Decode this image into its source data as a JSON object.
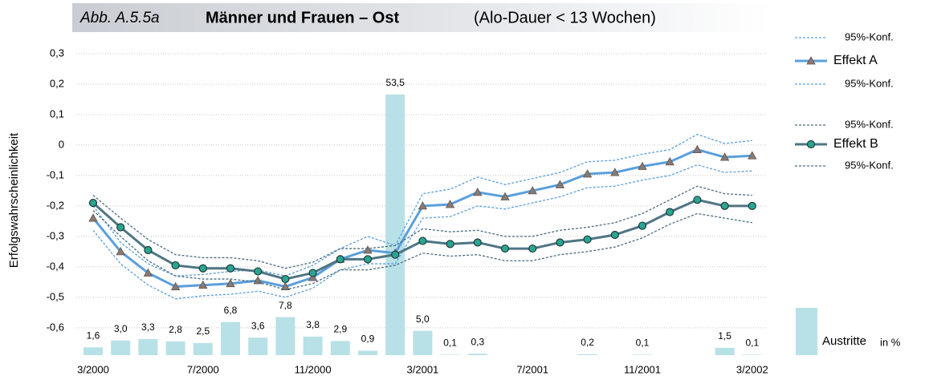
{
  "chart_data": {
    "type": "line",
    "figure_label": "Abb. A.5.5a",
    "title": "Männer und Frauen – Ost",
    "subtitle": "(Alo-Dauer < 13 Wochen)",
    "y_label": "Erfolgswahrscheinlichkeit",
    "categories": [
      "3/2000",
      null,
      null,
      null,
      "7/2000",
      null,
      null,
      null,
      "11/2000",
      null,
      null,
      null,
      "3/2001",
      null,
      null,
      null,
      "7/2001",
      null,
      null,
      null,
      "11/2001",
      null,
      null,
      null,
      "3/2002"
    ],
    "ylim": [
      -0.69,
      0.35
    ],
    "yticks": [
      {
        "value": 0.3,
        "label": "0,3"
      },
      {
        "value": 0.2,
        "label": "0,2"
      },
      {
        "value": 0.1,
        "label": "0,1"
      },
      0,
      {
        "value": -0.1,
        "label": "-0,1"
      },
      {
        "value": -0.2,
        "label": "-0,2"
      },
      {
        "value": -0.3,
        "label": "-0,3"
      },
      {
        "value": -0.4,
        "label": "-0,4"
      },
      {
        "value": -0.5,
        "label": "-0,5"
      },
      {
        "value": -0.6,
        "label": "-0,6"
      }
    ],
    "y2lim": [
      0,
      65
    ],
    "grid": true,
    "legend": "right",
    "series": [
      {
        "name": "95%-Konf.",
        "color": "#5a9fdc",
        "dash": true,
        "values": [
          -0.2,
          -0.32,
          -0.39,
          -0.43,
          -0.425,
          -0.415,
          -0.41,
          -0.43,
          -0.395,
          -0.34,
          -0.3,
          -0.33,
          -0.16,
          -0.145,
          -0.105,
          -0.13,
          -0.11,
          -0.09,
          -0.055,
          -0.05,
          -0.03,
          -0.015,
          0.035,
          0.005,
          0.015
        ]
      },
      {
        "name": "Effekt A",
        "color": "#5a9fdc",
        "marker": "triangle",
        "values": [
          -0.24,
          -0.35,
          -0.42,
          -0.465,
          -0.46,
          -0.455,
          -0.445,
          -0.465,
          -0.435,
          -0.375,
          -0.345,
          -0.355,
          -0.2,
          -0.195,
          -0.155,
          -0.17,
          -0.15,
          -0.13,
          -0.095,
          -0.09,
          -0.07,
          -0.055,
          -0.015,
          -0.04,
          -0.035
        ]
      },
      {
        "name": "95%-Konf.",
        "color": "#5a9fdc",
        "dash": true,
        "values": [
          -0.28,
          -0.39,
          -0.46,
          -0.505,
          -0.495,
          -0.49,
          -0.48,
          -0.5,
          -0.47,
          -0.41,
          -0.39,
          -0.39,
          -0.24,
          -0.235,
          -0.2,
          -0.21,
          -0.19,
          -0.17,
          -0.14,
          -0.135,
          -0.115,
          -0.1,
          -0.065,
          -0.09,
          -0.085
        ]
      },
      {
        "name": "95%-Konf.",
        "color": "#4a6d80",
        "dash": true,
        "values": [
          -0.165,
          -0.24,
          -0.31,
          -0.36,
          -0.37,
          -0.37,
          -0.38,
          -0.405,
          -0.385,
          -0.34,
          -0.34,
          -0.33,
          -0.275,
          -0.285,
          -0.28,
          -0.3,
          -0.3,
          -0.28,
          -0.27,
          -0.255,
          -0.225,
          -0.18,
          -0.135,
          -0.16,
          -0.165
        ]
      },
      {
        "name": "Effekt B",
        "color": "#4f7584",
        "marker": "circle",
        "marker_color": "#2aa58f",
        "values": [
          -0.19,
          -0.27,
          -0.345,
          -0.395,
          -0.405,
          -0.405,
          -0.415,
          -0.44,
          -0.42,
          -0.375,
          -0.375,
          -0.36,
          -0.315,
          -0.325,
          -0.32,
          -0.34,
          -0.34,
          -0.32,
          -0.31,
          -0.295,
          -0.265,
          -0.22,
          -0.18,
          -0.2,
          -0.2
        ]
      },
      {
        "name": "95%-Konf.",
        "color": "#4a6d80",
        "dash": true,
        "values": [
          -0.215,
          -0.3,
          -0.38,
          -0.43,
          -0.44,
          -0.44,
          -0.45,
          -0.475,
          -0.455,
          -0.41,
          -0.41,
          -0.395,
          -0.355,
          -0.365,
          -0.36,
          -0.38,
          -0.38,
          -0.36,
          -0.35,
          -0.335,
          -0.305,
          -0.26,
          -0.225,
          -0.24,
          -0.255
        ]
      },
      {
        "name": "Austritte",
        "unit": "in %",
        "type": "bar",
        "axis": "y2",
        "color": "#b7e1e6",
        "values": [
          1.6,
          3.0,
          3.3,
          2.8,
          2.5,
          6.8,
          3.6,
          7.8,
          3.8,
          2.9,
          0.9,
          53.5,
          5.0,
          0.1,
          0.3,
          null,
          null,
          null,
          0.2,
          null,
          0.1,
          null,
          null,
          1.5,
          0.1
        ],
        "value_labels": [
          "1,6",
          "3,0",
          "3,3",
          "2,8",
          "2,5",
          "6,8",
          "3,6",
          "7,8",
          "3,8",
          "2,9",
          "0,9",
          "53,5",
          "5,0",
          "0,1",
          "0,3",
          null,
          null,
          null,
          "0,2",
          null,
          "0,1",
          null,
          null,
          "1,5",
          "0,1"
        ]
      }
    ]
  }
}
